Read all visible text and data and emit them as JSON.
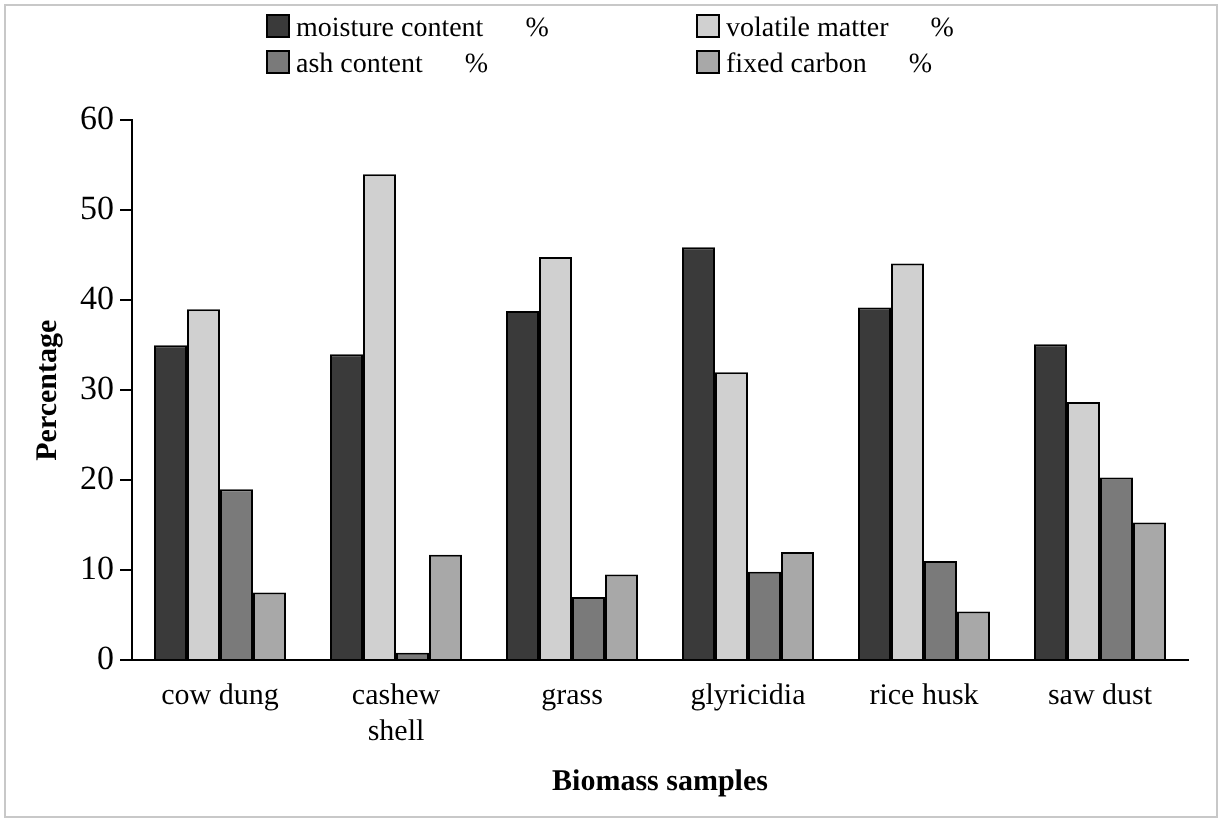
{
  "chart_data": {
    "type": "bar",
    "xlabel": "Biomass samples",
    "ylabel": "Percentage",
    "categories": [
      "cow dung",
      "cashew shell",
      "grass",
      "glyricidia",
      "rice husk",
      "saw dust"
    ],
    "series": [
      {
        "name": "moisture content      %",
        "color": "#3a3a3a",
        "values": [
          35,
          34,
          38.8,
          45.9,
          39.2,
          35.1
        ]
      },
      {
        "name": "volatile matter      %",
        "color": "#d0d0d0",
        "values": [
          39,
          54,
          44.8,
          32,
          44.1,
          28.7
        ]
      },
      {
        "name": "ash content      %",
        "color": "#7a7a7a",
        "values": [
          19,
          0.8,
          7,
          9.8,
          11,
          20.3
        ]
      },
      {
        "name": "fixed carbon      %",
        "color": "#a8a8a8",
        "values": [
          7.5,
          11.7,
          9.5,
          12,
          5.4,
          15.3
        ]
      }
    ],
    "ylim": [
      0,
      60
    ],
    "yticks": [
      0,
      10,
      20,
      30,
      40,
      50,
      60
    ],
    "grid": false,
    "legend": "top"
  }
}
